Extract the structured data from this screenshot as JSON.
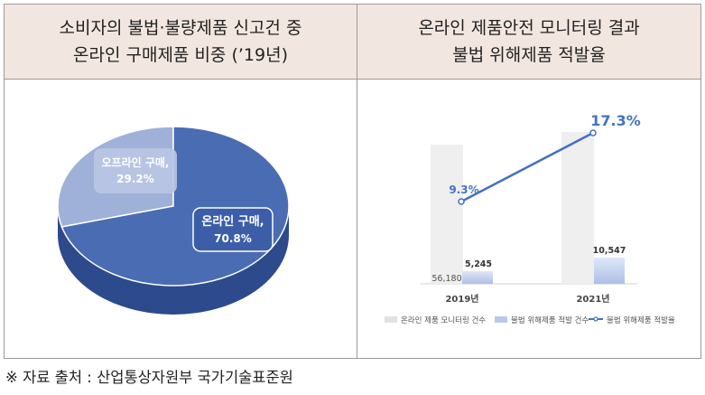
{
  "header_left": {
    "line1": "소비자의 불법·불량제품 신고건 중",
    "line2": "온라인 구매제품 비중 (’19년)"
  },
  "header_right": {
    "line1": "온라인 제품안전 모니터링 결과",
    "line2": "불법 위해제품 적발율"
  },
  "source": "※ 자료 출처 : 산업통상자원부 국가기술표준원",
  "colors": {
    "header_bg": "#f2e7e0",
    "pie_main": "#4a6cb3",
    "pie_light": "#9fb1d8",
    "bar_gray": "#efefef",
    "bar_blue": "#c9d6f1",
    "line": "#4470c4",
    "rate_text": "#4472c4"
  },
  "chart_data": [
    {
      "type": "pie",
      "slices": [
        {
          "label": "온라인 구매,",
          "value_label": "70.8%",
          "value": 70.8
        },
        {
          "label": "오프라인 구매,",
          "value_label": "29.2%",
          "value": 29.2
        }
      ]
    },
    {
      "type": "bar",
      "categories": [
        "2019년",
        "2021년"
      ],
      "series": [
        {
          "name": "온라인 제품 모니터링 건수",
          "values": [
            56180,
            null
          ],
          "labels": [
            "56,180",
            ""
          ]
        },
        {
          "name": "불법 위해제품 적발 건수",
          "values": [
            5245,
            10547
          ],
          "labels": [
            "5,245",
            "10,547"
          ]
        },
        {
          "name": "불법 위해제품 적발율",
          "type": "line",
          "values": [
            9.3,
            17.3
          ],
          "labels": [
            "9.3%",
            "17.3%"
          ]
        }
      ]
    }
  ]
}
